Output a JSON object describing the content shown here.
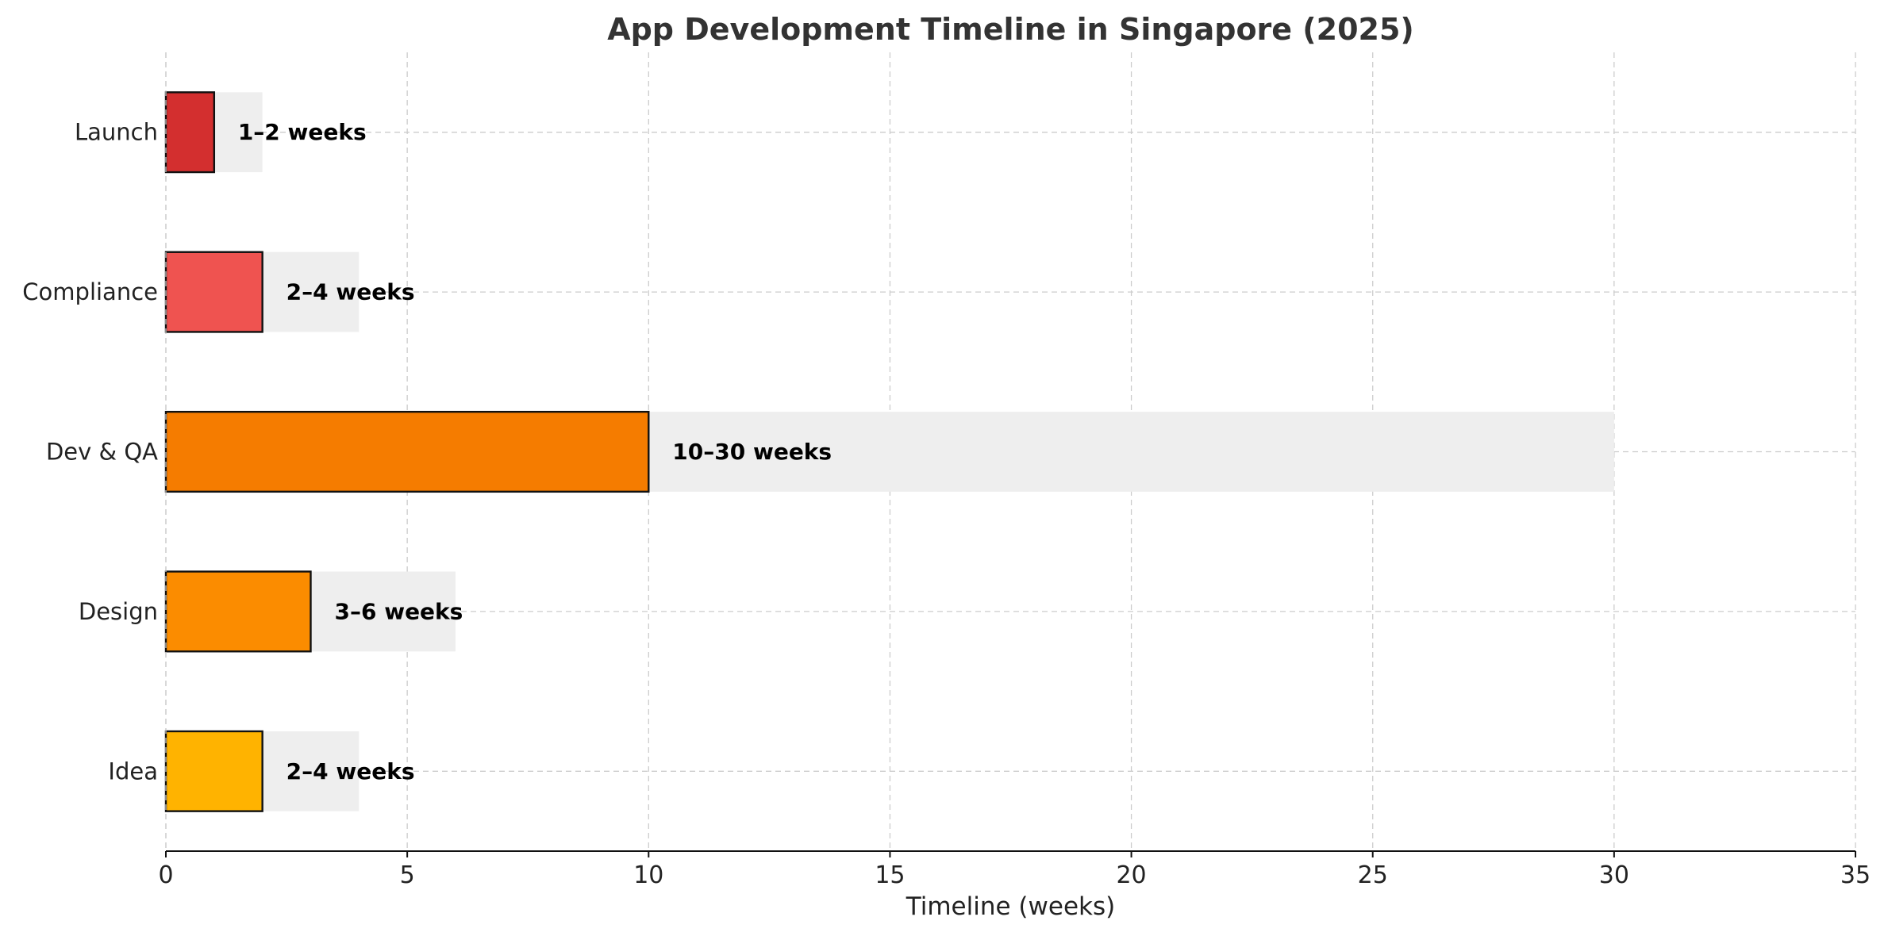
{
  "chart_data": {
    "type": "bar",
    "orientation": "horizontal",
    "title": "App Development Timeline in Singapore (2025)",
    "xlabel": "Timeline (weeks)",
    "ylabel": "",
    "xlim": [
      0,
      35
    ],
    "xticks": [
      0,
      5,
      10,
      15,
      20,
      25,
      30,
      35
    ],
    "grid": true,
    "categories": [
      "Idea",
      "Design",
      "Dev & QA",
      "Compliance",
      "Launch"
    ],
    "series": [
      {
        "values": [
          2,
          3,
          10,
          2,
          1
        ]
      },
      {
        "values": [
          4,
          6,
          30,
          4,
          2
        ]
      }
    ],
    "labels": [
      "2–4 weeks",
      "3–6 weeks",
      "10–30 weeks",
      "2–4 weeks",
      "1–2 weeks"
    ],
    "colors": [
      "#FFB300",
      "#FB8C00",
      "#F57C00",
      "#EF5350",
      "#D32F2F"
    ],
    "range_color": "#EEEEEE"
  }
}
